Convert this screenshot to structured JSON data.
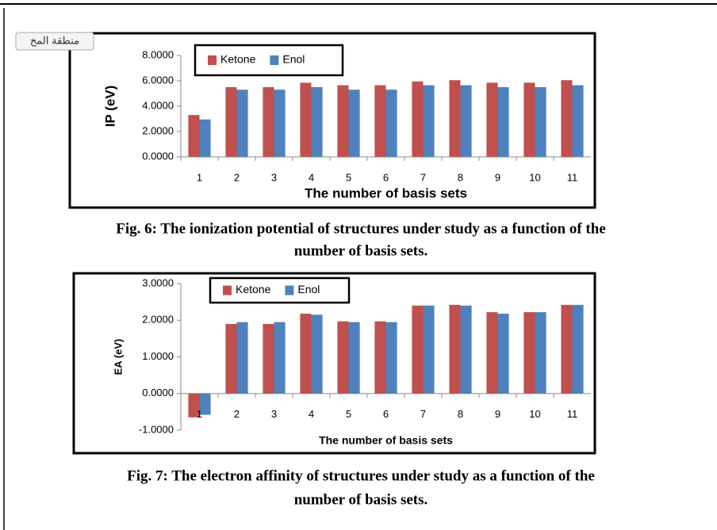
{
  "tab_label": "منطقة المخ",
  "chart_data": [
    {
      "type": "bar",
      "ylabel": "IP (eV)",
      "xlabel": "The number of basis sets",
      "caption": [
        "Fig. 6: The ionization potential of structures under study as a function of the",
        "number of basis sets."
      ],
      "categories": [
        "1",
        "2",
        "3",
        "4",
        "5",
        "6",
        "7",
        "8",
        "9",
        "10",
        "11"
      ],
      "series": [
        {
          "name": "Ketone",
          "color": "#c0504d",
          "values": [
            3.3,
            5.5,
            5.5,
            5.85,
            5.65,
            5.65,
            5.95,
            6.05,
            5.85,
            5.85,
            6.05
          ]
        },
        {
          "name": "Enol",
          "color": "#4f81bd",
          "values": [
            2.95,
            5.3,
            5.3,
            5.5,
            5.3,
            5.3,
            5.65,
            5.65,
            5.5,
            5.5,
            5.65
          ]
        }
      ],
      "ylim": [
        0,
        8
      ],
      "yticks": [
        {
          "value": 0,
          "label": "0.0000"
        },
        {
          "value": 2,
          "label": "2.0000"
        },
        {
          "value": 4,
          "label": "4.0000"
        },
        {
          "value": 6,
          "label": "6.0000"
        },
        {
          "value": 8,
          "label": "8.0000"
        }
      ]
    },
    {
      "type": "bar",
      "ylabel": "EA (eV)",
      "xlabel": "The number of basis sets",
      "caption": [
        "Fig. 7: The electron affinity of structures under study as a function of the",
        "number of basis sets."
      ],
      "categories": [
        "1",
        "2",
        "3",
        "4",
        "5",
        "6",
        "7",
        "8",
        "9",
        "10",
        "11"
      ],
      "series": [
        {
          "name": "Ketone",
          "color": "#c0504d",
          "values": [
            -0.65,
            1.9,
            1.9,
            2.18,
            1.97,
            1.97,
            2.4,
            2.42,
            2.22,
            2.22,
            2.42
          ]
        },
        {
          "name": "Enol",
          "color": "#4f81bd",
          "values": [
            -0.58,
            1.95,
            1.95,
            2.15,
            1.95,
            1.95,
            2.4,
            2.4,
            2.18,
            2.22,
            2.42
          ]
        }
      ],
      "ylim": [
        -1,
        3
      ],
      "yticks": [
        {
          "value": -1,
          "label": "-1.0000"
        },
        {
          "value": 0,
          "label": "0.0000"
        },
        {
          "value": 1,
          "label": "1.0000"
        },
        {
          "value": 2,
          "label": "2.0000"
        },
        {
          "value": 3,
          "label": "3.0000"
        }
      ]
    }
  ]
}
